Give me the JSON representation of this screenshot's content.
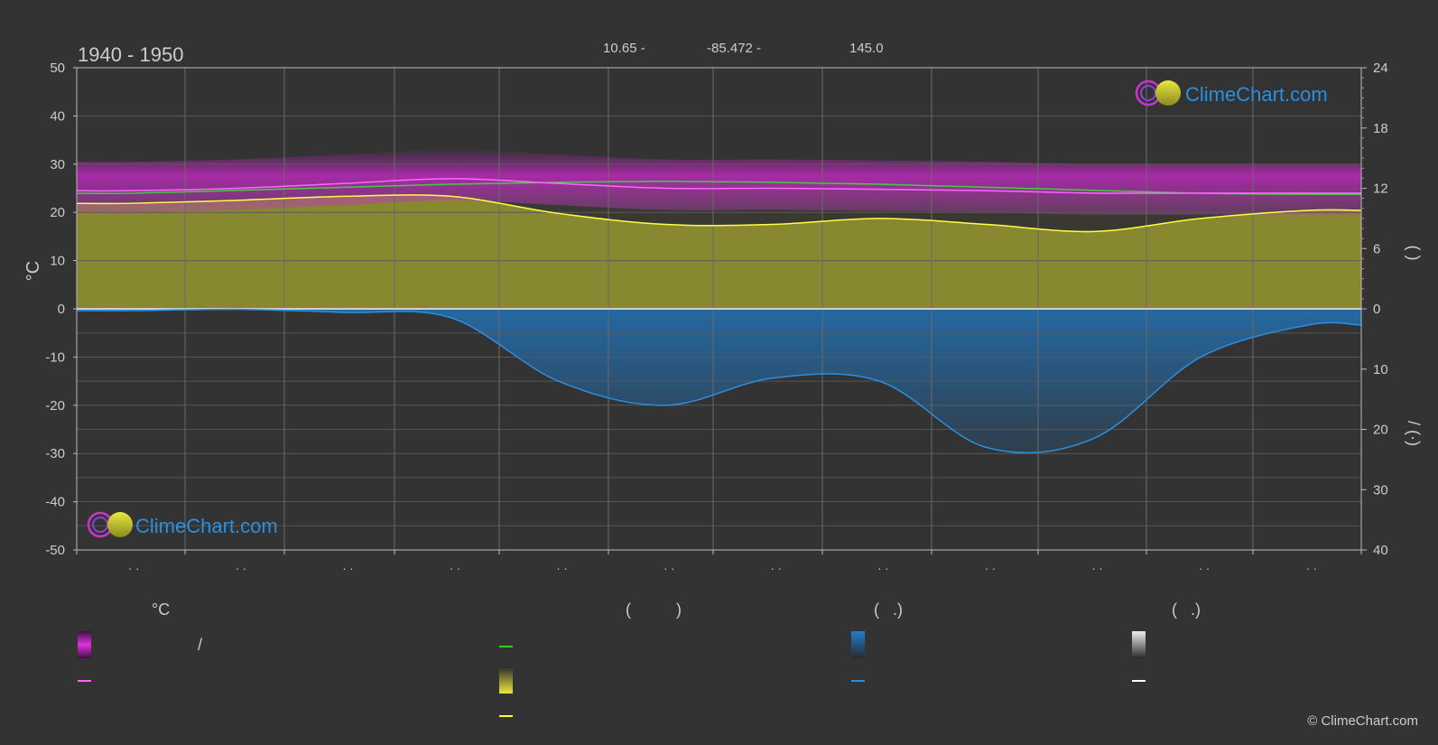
{
  "chart_data": {
    "type": "area",
    "title": "1940 - 1950",
    "header_values": [
      "10.65 -",
      "-85.472 -",
      "145.0"
    ],
    "ylabel_left": "°C",
    "ylim_left": [
      -50,
      50
    ],
    "yticks_left": [
      50,
      40,
      30,
      20,
      10,
      0,
      -10,
      -20,
      -30,
      -40,
      -50
    ],
    "ylabel_right_upper": "(    )",
    "ylim_right_upper": [
      0,
      24
    ],
    "yticks_right_upper": [
      24,
      18,
      12,
      6,
      0
    ],
    "ylabel_right_lower": "/ (·)",
    "ylim_right_lower": [
      0,
      40
    ],
    "yticks_right_lower": [
      10,
      20,
      30,
      40
    ],
    "months": 12,
    "x_tick_labels": [
      "· ·",
      "· ·",
      "· ·",
      "· ·",
      "· ·",
      "· ·",
      "· ·",
      "· ·",
      "· ·",
      "· ·",
      "· ·",
      "· ·"
    ],
    "grid": true,
    "series": [
      {
        "key": "max_temp",
        "color": "#ff66ff",
        "values": [
          24.5,
          25,
          26,
          27,
          26,
          25,
          25,
          24.8,
          24.5,
          24,
          24,
          24
        ],
        "axis": "celsius"
      },
      {
        "key": "daylight",
        "color": "#44cc44",
        "values": [
          11.5,
          11.8,
          12.1,
          12.4,
          12.6,
          12.7,
          12.6,
          12.4,
          12.1,
          11.8,
          11.5,
          11.4
        ],
        "axis": "hours"
      },
      {
        "key": "sunshine",
        "color": "#ffff44",
        "values": [
          10.5,
          10.8,
          11.2,
          11.2,
          9.5,
          8.4,
          8.4,
          9.0,
          8.4,
          7.7,
          9.0,
          9.8
        ],
        "axis": "hours"
      },
      {
        "key": "precipitation",
        "color": "#2a8fe0",
        "values": [
          0.3,
          0.1,
          0.6,
          1.5,
          12,
          16,
          11.5,
          12,
          23,
          21.5,
          8,
          2.7
        ],
        "axis": "mm"
      }
    ]
  },
  "brand": {
    "logo_text": "ClimeChart.com",
    "copyright": "© ClimeChart.com"
  },
  "legend": {
    "col1_head": "°C",
    "col2_head": "(          )",
    "col3_head": "(   .)",
    "col4_head": "(   .)",
    "slash": "/",
    "colors": {
      "temp_range": "#e030e0",
      "max_temp_line": "#ff66ff",
      "daylight_line": "#33cc33",
      "sunshine_fill": "#d8d830",
      "sunshine_line": "#ffff44",
      "precip_fill": "#1e7fd0",
      "precip_line": "#2a8fe0",
      "snow_fill": "#dddddd",
      "snow_line": "#ffffff"
    }
  }
}
